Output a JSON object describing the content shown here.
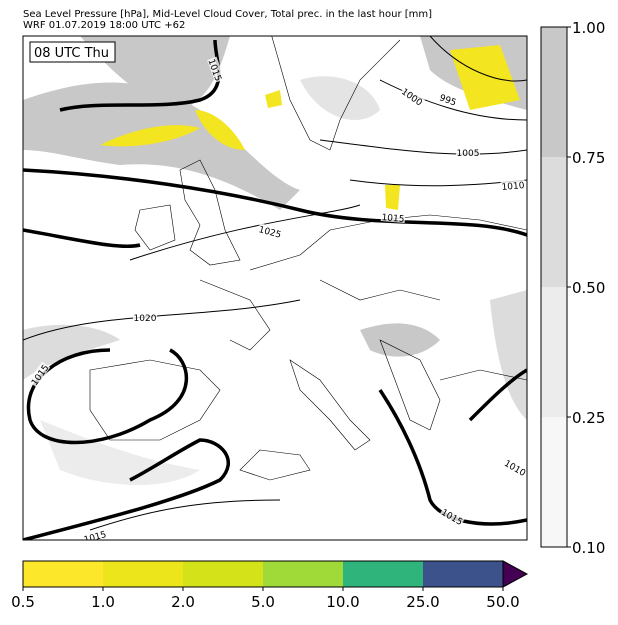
{
  "header": {
    "line1": "Sea Level Pressure [hPa], Mid-Level Cloud Cover, Total prec. in the last hour [mm]",
    "line2": "WRF 01.07.2019 18:00 UTC +62"
  },
  "map": {
    "time_label": "08 UTC Thu",
    "contour_labels": [
      "1015",
      "1000",
      "995",
      "1005",
      "1010",
      "1015",
      "1025",
      "1020",
      "1015",
      "1010",
      "1015",
      "1015"
    ]
  },
  "cloud_colorbar": {
    "colors": [
      "#f7f7f7",
      "#ececec",
      "#dcdcdc",
      "#c8c8c8"
    ],
    "ticks": [
      {
        "value": 0.1,
        "label": "0.10"
      },
      {
        "value": 0.25,
        "label": "0.25"
      },
      {
        "value": 0.5,
        "label": "0.50"
      },
      0.75,
      {
        "value": 1,
        "label": "1.00"
      }
    ]
  },
  "precip_colorbar": {
    "colors": [
      "#fde72a",
      "#ede51b",
      "#d4e21a",
      "#a0da39",
      "#2fb47c",
      "#3b528b"
    ],
    "extend_color": "#440154",
    "ticks": [
      0.5,
      {
        "value": 1,
        "label": "1.0"
      },
      {
        "value": 2,
        "label": "2.0"
      },
      {
        "value": 5,
        "label": "5.0"
      },
      {
        "value": 10,
        "label": "10.0"
      },
      {
        "value": 25,
        "label": "25.0"
      },
      {
        "value": 50,
        "label": "50.0"
      }
    ]
  }
}
